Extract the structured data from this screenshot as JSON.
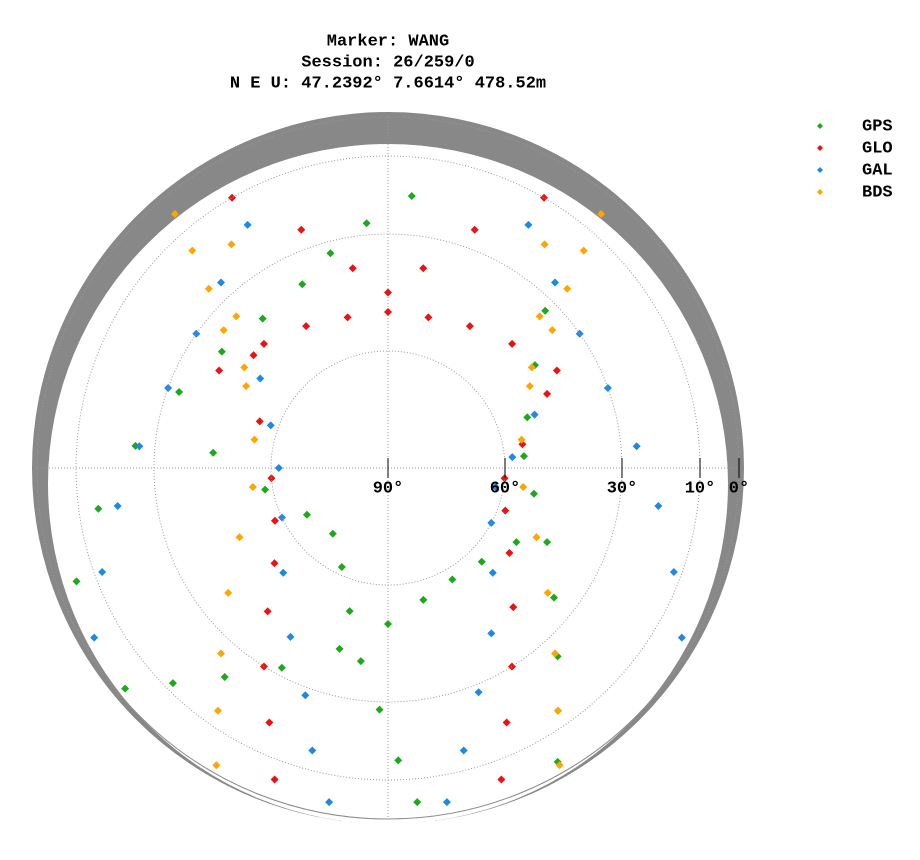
{
  "chart_data": {
    "type": "skyplot",
    "title": [
      "Marker: WANG",
      "Session: 26/259/0",
      "N E U: 47.2392° 7.6614° 478.52m"
    ],
    "rlim": [
      90,
      0
    ],
    "rticks": [
      {
        "value": 90,
        "label": "90°"
      },
      {
        "value": 60,
        "label": "60°"
      },
      {
        "value": 30,
        "label": "30°"
      },
      {
        "value": 10,
        "label": "10°"
      },
      {
        "value": 0,
        "label": "0°"
      }
    ],
    "grid": true,
    "legend": "right",
    "series": [
      {
        "name": "GPS",
        "color": "#1aaa1a",
        "azimuth": [
          230,
          225,
          218,
          208,
          195,
          180,
          165,
          150,
          135,
          120,
          150,
          145,
          138,
          128,
          115,
          100,
          85,
          70,
          55,
          45,
          250,
          262,
          275,
          290,
          305,
          320,
          335,
          345,
          355,
          5,
          175,
          178,
          182,
          188,
          195,
          205,
          220,
          240,
          260,
          275
        ],
        "values": [
          2,
          12,
          22,
          32,
          42,
          50,
          55,
          57,
          56,
          52,
          3,
          14,
          25,
          36,
          45,
          52,
          55,
          52,
          44,
          33,
          5,
          15,
          25,
          33,
          38,
          40,
          38,
          33,
          27,
          20,
          4,
          15,
          28,
          40,
          52,
          62,
          68,
          66,
          58,
          45
        ]
      },
      {
        "name": "GLO",
        "color": "#ee1111",
        "azimuth": [
          300,
          315,
          330,
          345,
          0,
          15,
          30,
          45,
          60,
          330,
          340,
          350,
          0,
          10,
          20,
          30,
          200,
          205,
          212,
          220,
          230,
          245,
          265,
          290,
          310,
          160,
          155,
          148,
          138,
          125,
          110,
          95,
          80,
          65
        ],
        "values": [
          40,
          45,
          48,
          50,
          50,
          50,
          48,
          45,
          40,
          10,
          25,
          38,
          45,
          38,
          25,
          10,
          5,
          18,
          30,
          42,
          52,
          58,
          60,
          55,
          45,
          5,
          18,
          30,
          42,
          52,
          58,
          60,
          55,
          45
        ]
      },
      {
        "name": "GAL",
        "color": "#1e88e5",
        "azimuth": [
          190,
          195,
          200,
          210,
          225,
          245,
          270,
          290,
          305,
          170,
          165,
          158,
          148,
          135,
          118,
          100,
          85,
          70,
          240,
          250,
          262,
          275,
          290,
          305,
          318,
          330,
          120,
          110,
          98,
          85,
          70,
          55,
          42,
          30
        ],
        "values": [
          3,
          15,
          28,
          40,
          52,
          60,
          62,
          58,
          50,
          3,
          15,
          28,
          40,
          52,
          60,
          62,
          58,
          50,
          3,
          12,
          20,
          26,
          30,
          30,
          26,
          18,
          3,
          12,
          20,
          26,
          30,
          30,
          26,
          18
        ]
      },
      {
        "name": "BDS",
        "color": "#ffa500",
        "azimuth": [
          210,
          215,
          222,
          232,
          245,
          262,
          282,
          300,
          315,
          325,
          150,
          145,
          138,
          128,
          115,
          98,
          78,
          60,
          45,
          35,
          320,
          318,
          315,
          310,
          305,
          40,
          42,
          45,
          50,
          55
        ],
        "values": [
          2,
          14,
          26,
          38,
          48,
          55,
          55,
          48,
          35,
          20,
          2,
          14,
          26,
          38,
          48,
          55,
          55,
          48,
          35,
          20,
          5,
          15,
          25,
          35,
          45,
          5,
          15,
          25,
          35,
          45
        ]
      }
    ]
  }
}
